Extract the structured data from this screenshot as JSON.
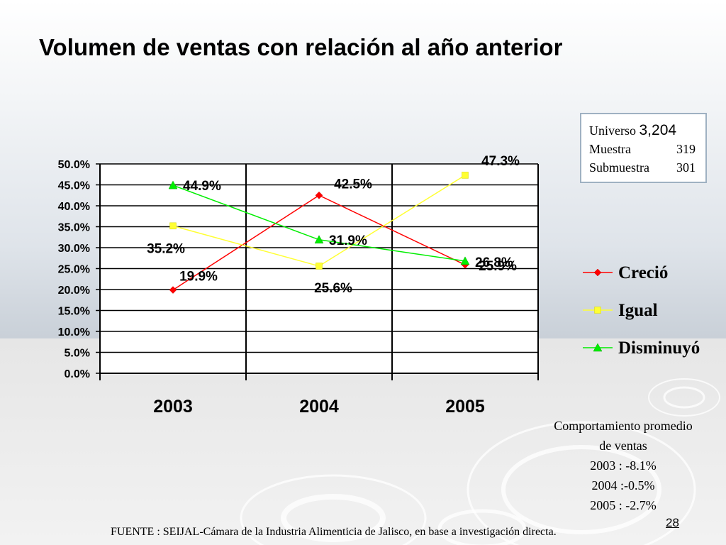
{
  "slide": {
    "title": "Volumen de ventas con relación al año anterior",
    "page_number": "28"
  },
  "info_box": {
    "universo_label": "Universo",
    "universo_value": "3,204",
    "muestra_label": "Muestra",
    "muestra_value": "319",
    "submuestra_label": "Submuestra",
    "submuestra_value": "301"
  },
  "chart_data": {
    "type": "line",
    "title": "",
    "xlabel": "",
    "ylabel": "",
    "categories": [
      "2003",
      "2004",
      "2005"
    ],
    "ylim": [
      0,
      50
    ],
    "yticks": [
      "0.0%",
      "5.0%",
      "10.0%",
      "15.0%",
      "20.0%",
      "25.0%",
      "30.0%",
      "35.0%",
      "40.0%",
      "45.0%",
      "50.0%"
    ],
    "grid": true,
    "legend_position": "right",
    "series": [
      {
        "name": "Creció",
        "color": "#ff0000",
        "marker": "diamond",
        "values": [
          19.9,
          42.5,
          25.9
        ],
        "labels": [
          "19.9%",
          "42.5%",
          "25.9%"
        ]
      },
      {
        "name": "Igual",
        "color": "#ffff33",
        "marker": "square",
        "values": [
          35.2,
          25.6,
          47.3
        ],
        "labels": [
          "35.2%",
          "25.6%",
          "47.3%"
        ]
      },
      {
        "name": "Disminuyó",
        "color": "#00ee00",
        "marker": "triangle",
        "values": [
          44.9,
          31.9,
          26.8
        ],
        "labels": [
          "44.9%",
          "31.9%",
          "26.8%"
        ]
      }
    ]
  },
  "average_box": {
    "heading_line1": "Comportamiento promedio",
    "heading_line2": "de ventas",
    "lines": [
      "2003 : -8.1%",
      "2004 :-0.5%",
      "2005 : -2.7%"
    ]
  },
  "footer": {
    "source": "FUENTE : SEIJAL-Cámara de la Industria Alimenticia de Jalisco,  en base a investigación directa."
  }
}
